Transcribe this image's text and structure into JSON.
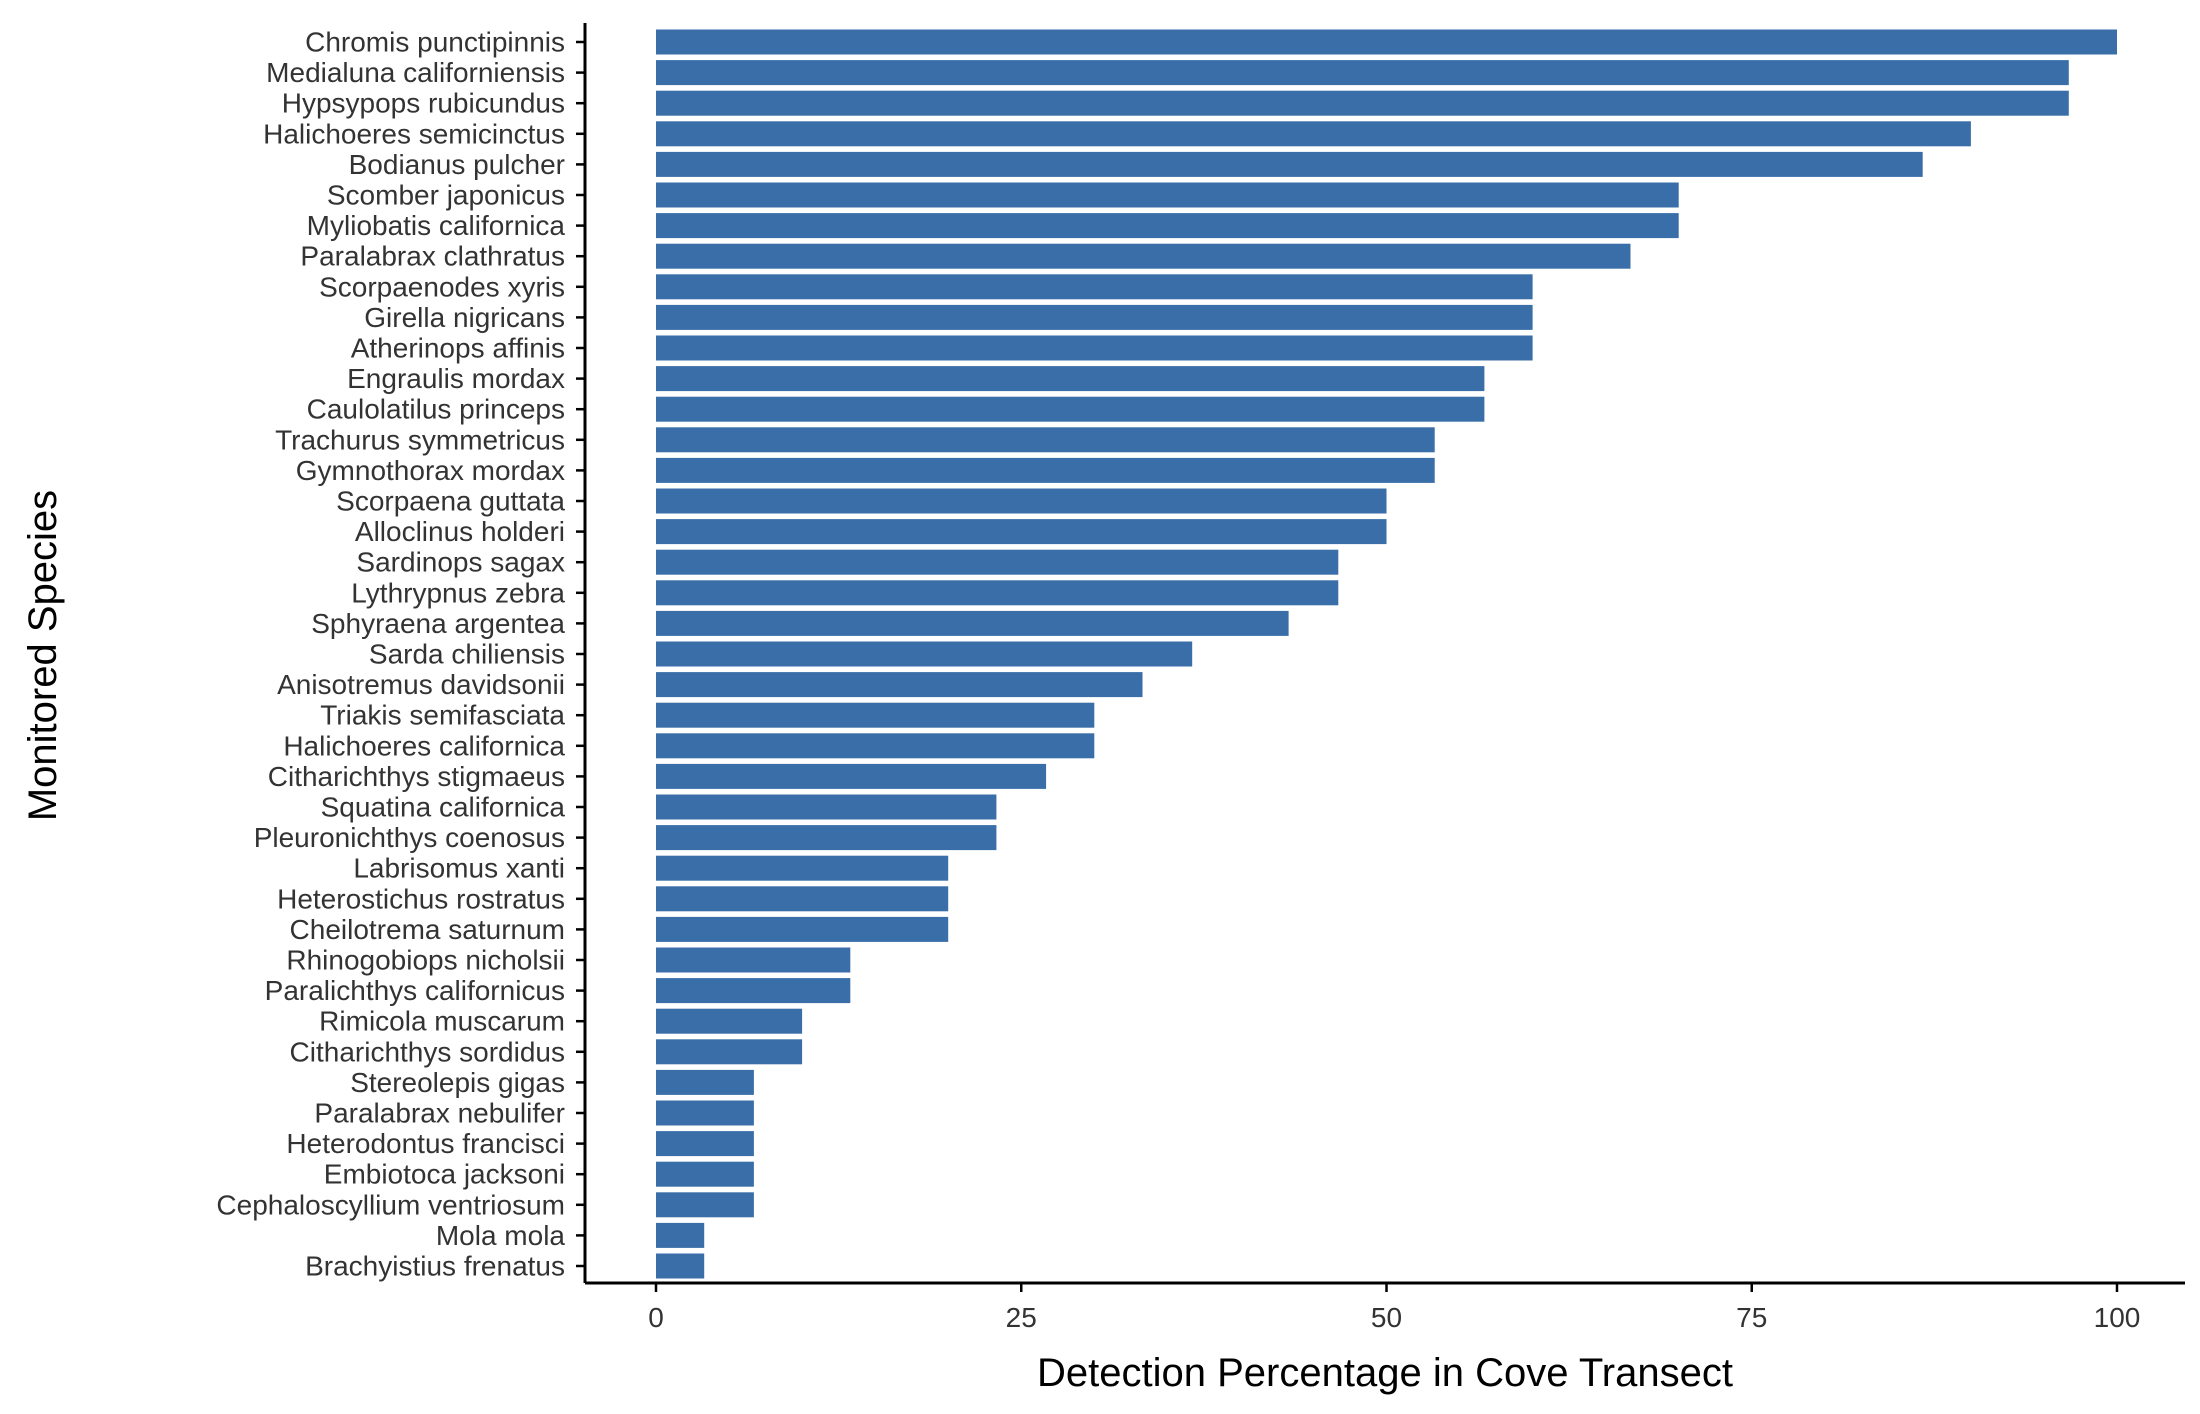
{
  "chart_data": {
    "type": "bar",
    "orientation": "horizontal",
    "title": "",
    "xlabel": "Detection Percentage in Cove Transect",
    "ylabel": "Monitored Species",
    "xlim": [
      0,
      100
    ],
    "x_ticks": [
      0,
      25,
      50,
      75,
      100
    ],
    "grid": false,
    "bar_color": "#3A6EA8",
    "categories": [
      "Chromis punctipinnis",
      "Medialuna californiensis",
      "Hypsypops rubicundus",
      "Halichoeres semicinctus",
      "Bodianus pulcher",
      "Scomber japonicus",
      "Myliobatis californica",
      "Paralabrax clathratus",
      "Scorpaenodes xyris",
      "Girella nigricans",
      "Atherinops affinis",
      "Engraulis mordax",
      "Caulolatilus princeps",
      "Trachurus symmetricus",
      "Gymnothorax mordax",
      "Scorpaena guttata",
      "Alloclinus holderi",
      "Sardinops sagax",
      "Lythrypnus zebra",
      "Sphyraena argentea",
      "Sarda chiliensis",
      "Anisotremus davidsonii",
      "Triakis semifasciata",
      "Halichoeres californica",
      "Citharichthys stigmaeus",
      "Squatina californica",
      "Pleuronichthys coenosus",
      "Labrisomus xanti",
      "Heterostichus rostratus",
      "Cheilotrema saturnum",
      "Rhinogobiops nicholsii",
      "Paralichthys californicus",
      "Rimicola muscarum",
      "Citharichthys sordidus",
      "Stereolepis gigas",
      "Paralabrax nebulifer",
      "Heterodontus francisci",
      "Embiotoca jacksoni",
      "Cephaloscyllium ventriosum",
      "Mola mola",
      "Brachyistius frenatus"
    ],
    "values": [
      100,
      96.7,
      96.7,
      90,
      86.7,
      70,
      70,
      66.7,
      60,
      60,
      60,
      56.7,
      56.7,
      53.3,
      53.3,
      50,
      50,
      46.7,
      46.7,
      43.3,
      36.7,
      33.3,
      30,
      30,
      26.7,
      23.3,
      23.3,
      20,
      20,
      20,
      13.3,
      13.3,
      10,
      10,
      6.7,
      6.7,
      6.7,
      6.7,
      6.7,
      3.3,
      3.3
    ]
  }
}
